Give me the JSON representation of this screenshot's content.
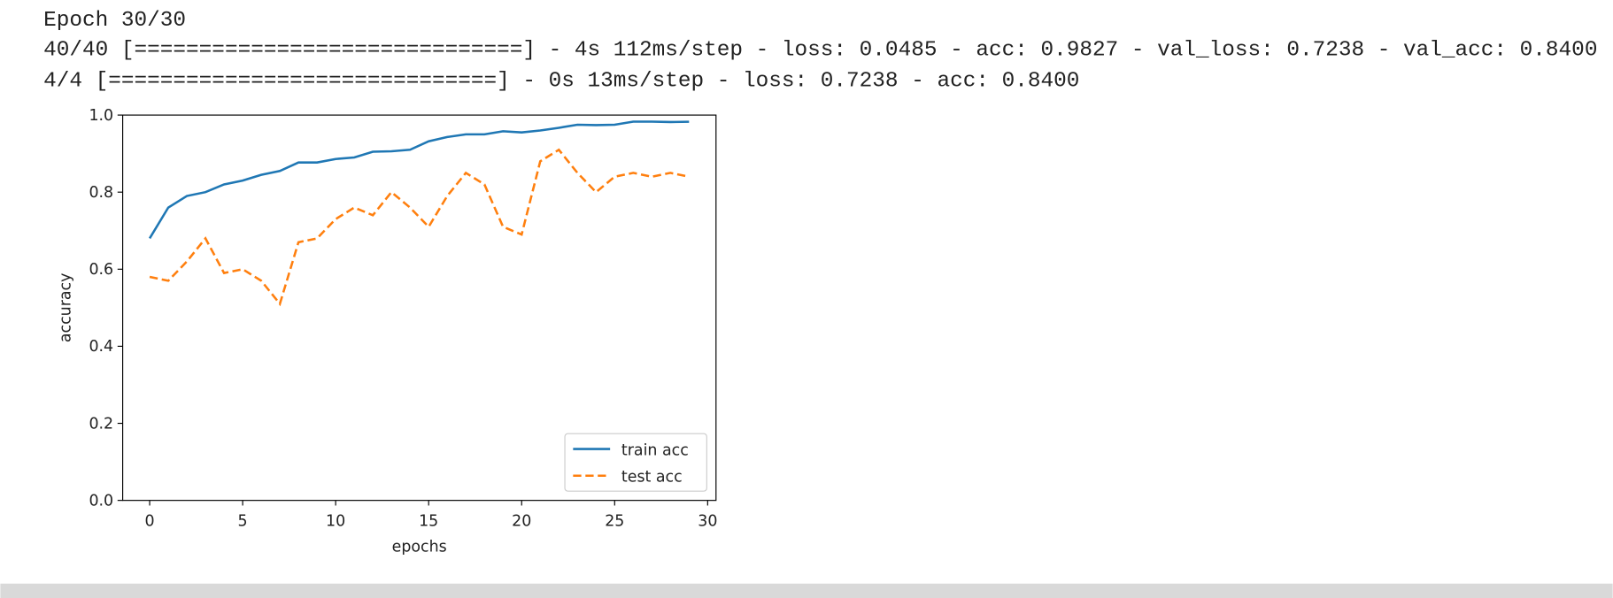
{
  "console": {
    "lines": [
      "Epoch 30/30",
      "40/40 [==============================] - 4s 112ms/step - loss: 0.0485 - acc: 0.9827 - val_loss: 0.7238 - val_acc: 0.8400",
      "4/4 [==============================] - 0s 13ms/step - loss: 0.7238 - acc: 0.8400"
    ]
  },
  "chart_data": {
    "type": "line",
    "x": [
      0,
      1,
      2,
      3,
      4,
      5,
      6,
      7,
      8,
      9,
      10,
      11,
      12,
      13,
      14,
      15,
      16,
      17,
      18,
      19,
      20,
      21,
      22,
      23,
      24,
      25,
      26,
      27,
      28,
      29
    ],
    "series": [
      {
        "name": "train acc",
        "color": "#1f77b4",
        "dash": "solid",
        "values": [
          0.68,
          0.76,
          0.79,
          0.8,
          0.82,
          0.83,
          0.845,
          0.855,
          0.877,
          0.877,
          0.886,
          0.89,
          0.905,
          0.906,
          0.91,
          0.932,
          0.943,
          0.95,
          0.95,
          0.958,
          0.955,
          0.96,
          0.967,
          0.975,
          0.974,
          0.975,
          0.983,
          0.983,
          0.982,
          0.9827
        ]
      },
      {
        "name": "test acc",
        "color": "#ff7f0e",
        "dash": "dashed",
        "values": [
          0.58,
          0.57,
          0.62,
          0.68,
          0.59,
          0.6,
          0.57,
          0.51,
          0.67,
          0.68,
          0.73,
          0.76,
          0.74,
          0.8,
          0.76,
          0.71,
          0.79,
          0.85,
          0.82,
          0.71,
          0.69,
          0.88,
          0.91,
          0.85,
          0.8,
          0.84,
          0.85,
          0.84,
          0.85,
          0.84
        ]
      }
    ],
    "x_label": "epochs",
    "y_label": "accuracy",
    "xlim": [
      -1.45,
      30.45
    ],
    "xticks": [
      0,
      5,
      10,
      15,
      20,
      25,
      30
    ],
    "ylim": [
      0,
      1
    ],
    "yticks": [
      {
        "value": 0,
        "label": "0.0"
      },
      0.2,
      0.4,
      0.6,
      0.8,
      {
        "value": 1,
        "label": "1.0"
      }
    ],
    "grid": false,
    "legend_loc": "lower right"
  }
}
